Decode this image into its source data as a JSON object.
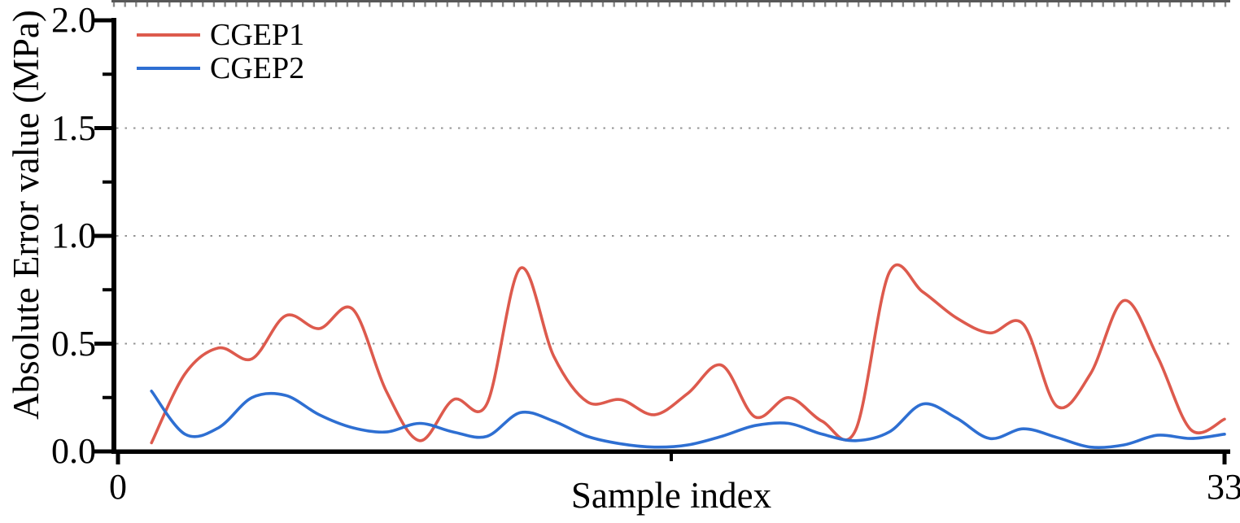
{
  "figure": {
    "background": "#ffffff"
  },
  "colors": {
    "axis": "#000000",
    "grid": "#949494",
    "text": "#000000",
    "top_border": "#3a3a3a",
    "cgep1": "#dd5a4d",
    "cgep2": "#2e6fd2"
  },
  "axes": {
    "x": {
      "label": "Sample index",
      "min": 0,
      "max": 33,
      "major_ticks": [
        {
          "value": 0,
          "label": "0"
        },
        {
          "value": 33,
          "label": "33"
        }
      ],
      "mid_tick_value": 16.5
    },
    "y": {
      "label": "Absolute Error value (MPa)",
      "min": 0,
      "max": 2,
      "major_ticks": [
        {
          "value": 0,
          "label": "0.0"
        },
        {
          "value": 0.5,
          "label": "0.5"
        },
        {
          "value": 1,
          "label": "1.0"
        },
        {
          "value": 1.5,
          "label": "1.5"
        },
        {
          "value": 2,
          "label": "2.0"
        }
      ],
      "minor_ticks": [
        0.25,
        0.75,
        1.25,
        1.75
      ],
      "gridlines": [
        0.5,
        1,
        1.5
      ]
    }
  },
  "chart_data": {
    "type": "line",
    "title": "",
    "xlabel": "Sample index",
    "ylabel": "Absolute Error value (MPa)",
    "xlim": [
      0,
      33
    ],
    "ylim": [
      0,
      2
    ],
    "grid": "dotted horizontal gridlines at 0.5, 1.0, 1.5",
    "legend_position": "top-left",
    "line_style": "smooth spline",
    "x": [
      1,
      2,
      3,
      4,
      5,
      6,
      7,
      8,
      9,
      10,
      11,
      12,
      13,
      14,
      15,
      16,
      17,
      18,
      19,
      20,
      21,
      22,
      23,
      24,
      25,
      26,
      27,
      28,
      29,
      30,
      31,
      32,
      33
    ],
    "series": [
      {
        "name": "CGEP1",
        "color": "#dd5a4d",
        "values": [
          0.04,
          0.36,
          0.48,
          0.43,
          0.63,
          0.57,
          0.66,
          0.28,
          0.05,
          0.24,
          0.22,
          0.85,
          0.44,
          0.23,
          0.24,
          0.17,
          0.27,
          0.4,
          0.16,
          0.25,
          0.14,
          0.1,
          0.83,
          0.74,
          0.62,
          0.55,
          0.59,
          0.21,
          0.36,
          0.7,
          0.44,
          0.1,
          0.15
        ]
      },
      {
        "name": "CGEP2",
        "color": "#2e6fd2",
        "values": [
          0.28,
          0.08,
          0.11,
          0.25,
          0.26,
          0.17,
          0.11,
          0.09,
          0.13,
          0.09,
          0.07,
          0.18,
          0.14,
          0.07,
          0.035,
          0.02,
          0.03,
          0.07,
          0.12,
          0.13,
          0.08,
          0.05,
          0.09,
          0.22,
          0.155,
          0.06,
          0.105,
          0.065,
          0.02,
          0.03,
          0.075,
          0.06,
          0.08
        ]
      }
    ]
  }
}
